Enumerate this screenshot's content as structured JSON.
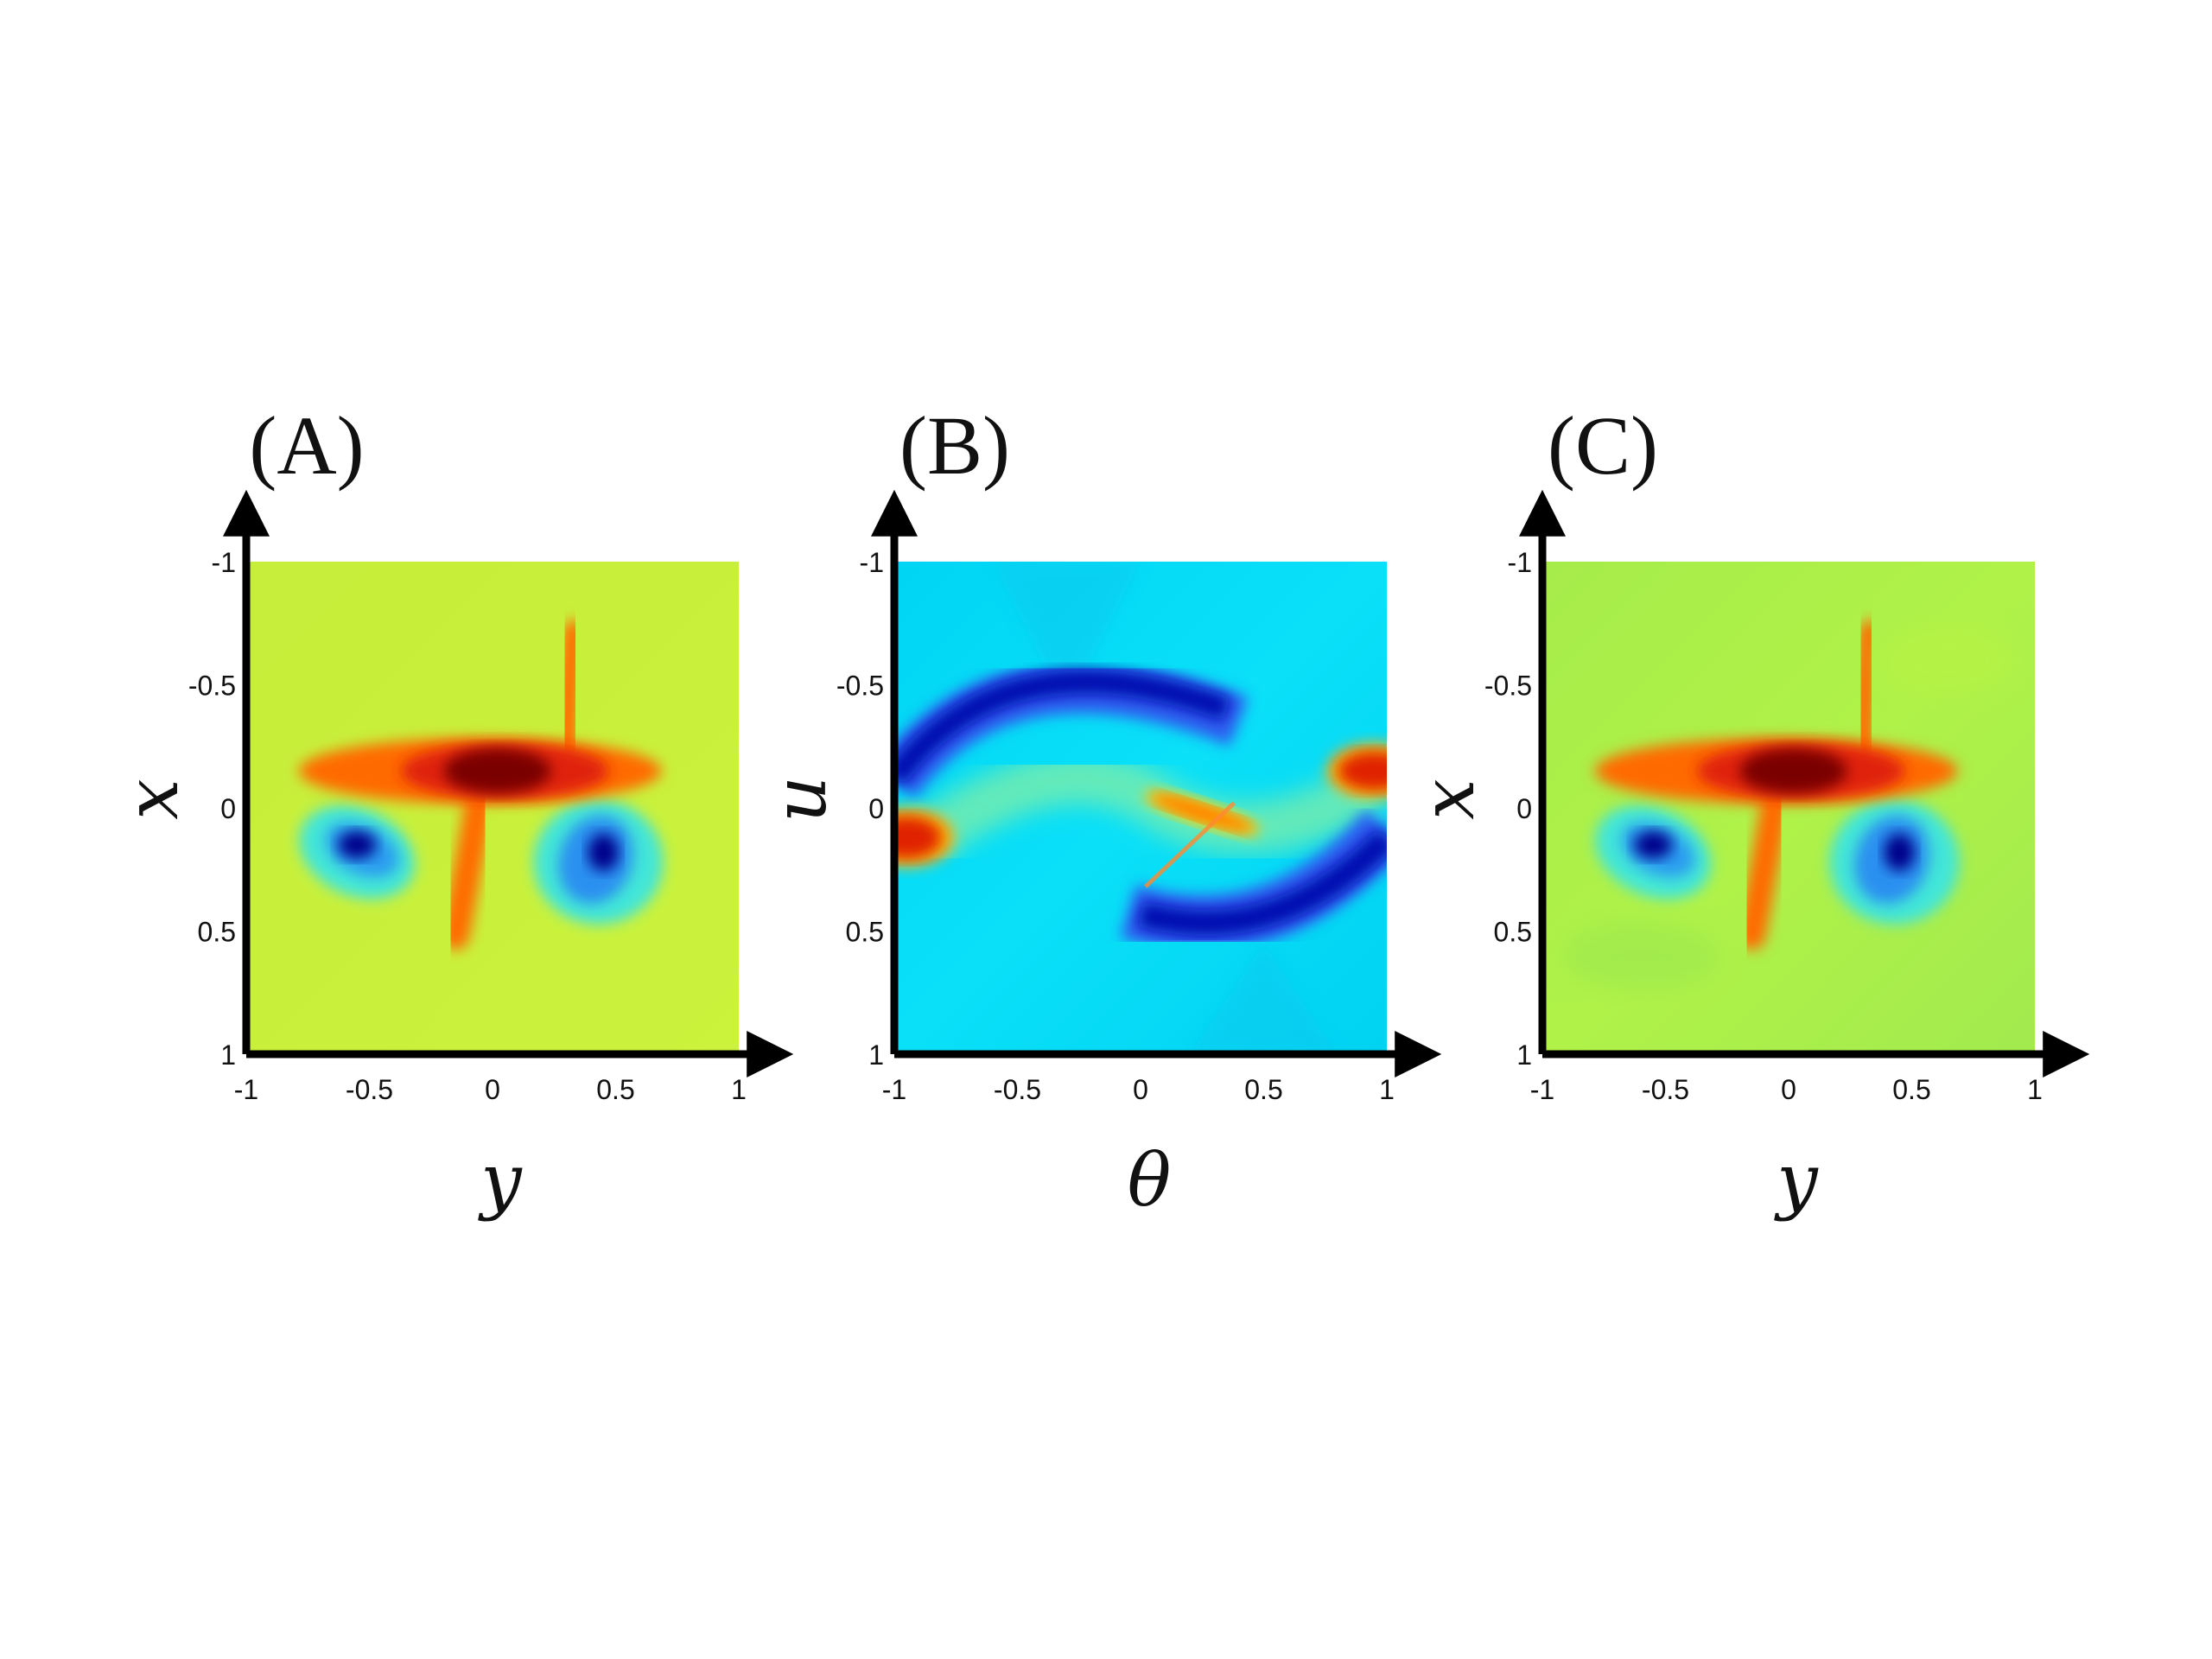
{
  "chart_data": [
    {
      "type": "heatmap",
      "panel_label": "(A)",
      "xlabel": "y",
      "ylabel": "x",
      "xlim": [
        -1,
        1
      ],
      "ylim": [
        1,
        -1
      ],
      "xticks": [
        "-1",
        "-0.5",
        "0",
        "0.5",
        "1"
      ],
      "yticks": [
        "-1",
        "-0.5",
        "0",
        "0.5",
        "1"
      ],
      "background_color": "#c8f03a",
      "features": [
        {
          "kind": "high",
          "level": "max",
          "color": "#7a0000",
          "y": 0.02,
          "x": -0.15
        },
        {
          "kind": "high",
          "level": "high",
          "color": "#ff6a00",
          "y_range": [
            -0.75,
            0.65
          ],
          "x": -0.15
        },
        {
          "kind": "high",
          "level": "high",
          "color": "#ff6a00",
          "y": 0.35,
          "x_range": [
            -0.75,
            -0.15
          ]
        },
        {
          "kind": "high",
          "level": "high",
          "color": "#ff6a00",
          "y": -0.1,
          "x_range": [
            -0.15,
            0.55
          ]
        },
        {
          "kind": "low",
          "level": "min",
          "color": "#00008b",
          "y": -0.55,
          "x": 0.15
        },
        {
          "kind": "low",
          "level": "min",
          "color": "#00008b",
          "y": 0.45,
          "x": 0.18
        }
      ]
    },
    {
      "type": "heatmap",
      "panel_label": "(B)",
      "xlabel": "θ",
      "ylabel": "u",
      "xlim": [
        -1,
        1
      ],
      "ylim": [
        1,
        -1
      ],
      "xticks": [
        "-1",
        "-0.5",
        "0",
        "0.5",
        "1"
      ],
      "yticks": [
        "-1",
        "-0.5",
        "0",
        "0.5",
        "1"
      ],
      "background_color": "#00dcf5",
      "features": [
        {
          "kind": "low",
          "level": "min",
          "color": "#0010b0",
          "shape": "arc",
          "theta_range": [
            -1,
            0.4
          ],
          "u_range": [
            -0.55,
            0.05
          ]
        },
        {
          "kind": "low",
          "level": "min",
          "color": "#0010b0",
          "shape": "arc",
          "theta_range": [
            -0.05,
            1
          ],
          "u_range": [
            0.05,
            0.45
          ]
        },
        {
          "kind": "high",
          "level": "high",
          "color": "#e02000",
          "theta": 0.95,
          "u": -0.15
        },
        {
          "kind": "high",
          "level": "high",
          "color": "#e02000",
          "theta": -0.95,
          "u": 0.12
        },
        {
          "kind": "high",
          "level": "mid",
          "color": "#ff7a00",
          "theta": 0.25,
          "u": 0.02
        }
      ]
    },
    {
      "type": "heatmap",
      "panel_label": "(C)",
      "xlabel": "y",
      "ylabel": "x",
      "xlim": [
        -1,
        1
      ],
      "ylim": [
        1,
        -1
      ],
      "xticks": [
        "-1",
        "-0.5",
        "0",
        "0.5",
        "1"
      ],
      "yticks": [
        "-1",
        "-0.5",
        "0",
        "0.5",
        "1"
      ],
      "background_color": "#aaf046",
      "features": [
        {
          "kind": "high",
          "level": "max",
          "color": "#7a0000",
          "y": 0.02,
          "x": -0.15
        },
        {
          "kind": "high",
          "level": "high",
          "color": "#ff6a00",
          "y_range": [
            -0.75,
            0.65
          ],
          "x": -0.15
        },
        {
          "kind": "high",
          "level": "high",
          "color": "#ff6a00",
          "y": 0.35,
          "x_range": [
            -0.75,
            -0.15
          ]
        },
        {
          "kind": "high",
          "level": "high",
          "color": "#ff6a00",
          "y": -0.1,
          "x_range": [
            -0.15,
            0.55
          ]
        },
        {
          "kind": "low",
          "level": "min",
          "color": "#00008b",
          "y": -0.55,
          "x": 0.15
        },
        {
          "kind": "low",
          "level": "min",
          "color": "#00008b",
          "y": 0.45,
          "x": 0.18
        }
      ]
    }
  ]
}
